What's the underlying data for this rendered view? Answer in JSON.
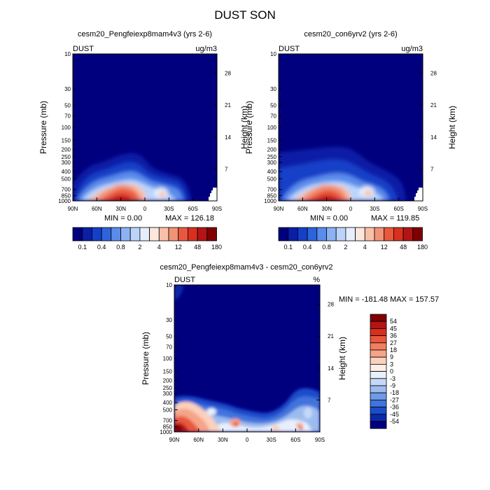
{
  "page_title": "DUST SON",
  "chart_data": [
    {
      "type": "heatmap",
      "title": "cesm20_Pengfeiexp8mam4v3 (yrs 2-6)",
      "variable": "DUST",
      "units": "ug/m3",
      "ylabel": "Pressure (mb)",
      "y2label": "Height (km)",
      "x_ticks": [
        "90N",
        "60N",
        "30N",
        "0",
        "30S",
        "60S",
        "90S"
      ],
      "y_ticks": [
        "10",
        "30",
        "50",
        "70",
        "100",
        "150",
        "200",
        "250",
        "300",
        "400",
        "500",
        "700",
        "850",
        "1000"
      ],
      "y2_ticks": [
        "28",
        "21",
        "14",
        "7"
      ],
      "min_label": "MIN =    0.00",
      "max_label": "MAX = 126.18",
      "min": 0.0,
      "max": 126.18,
      "colorbar_labels": [
        "0.1",
        "0.4",
        "0.8",
        "2",
        "4",
        "12",
        "48",
        "180"
      ]
    },
    {
      "type": "heatmap",
      "title": "cesm20_con6yrv2 (yrs 2-6)",
      "variable": "DUST",
      "units": "ug/m3",
      "ylabel": "Pressure (mb)",
      "y2label": "Height (km)",
      "x_ticks": [
        "90N",
        "60N",
        "30N",
        "0",
        "30S",
        "60S",
        "90S"
      ],
      "y_ticks": [
        "10",
        "30",
        "50",
        "70",
        "100",
        "150",
        "200",
        "250",
        "300",
        "400",
        "500",
        "700",
        "850",
        "1000"
      ],
      "y2_ticks": [
        "28",
        "21",
        "14",
        "7"
      ],
      "min_label": "MIN =    0.00",
      "max_label": "MAX = 119.85",
      "min": 0.0,
      "max": 119.85,
      "colorbar_labels": [
        "0.1",
        "0.4",
        "0.8",
        "2",
        "4",
        "12",
        "48",
        "180"
      ]
    },
    {
      "type": "heatmap",
      "title": "cesm20_Pengfeiexp8mam4v3 - cesm20_con6yrv2",
      "variable": "DUST",
      "units": "%",
      "ylabel": "Pressure (mb)",
      "y2label": "Height (km)",
      "x_ticks": [
        "90N",
        "60N",
        "30N",
        "0",
        "30S",
        "60S",
        "90S"
      ],
      "y_ticks": [
        "10",
        "30",
        "50",
        "70",
        "100",
        "150",
        "200",
        "250",
        "300",
        "400",
        "500",
        "700",
        "850",
        "1000"
      ],
      "y2_ticks": [
        "28",
        "21",
        "14",
        "7"
      ],
      "minmax_label": "MIN = -181.48  MAX = 157.57",
      "min": -181.48,
      "max": 157.57,
      "colorbar_labels": [
        "54",
        "45",
        "36",
        "27",
        "18",
        "9",
        "3",
        "0",
        "-3",
        "-9",
        "-18",
        "-27",
        "-36",
        "-45",
        "-54"
      ]
    }
  ],
  "colors": {
    "abs_scale": [
      "#00007f",
      "#0a1ea6",
      "#1440c8",
      "#2d64dc",
      "#5a8cec",
      "#8cb2f4",
      "#bcd4fa",
      "#e6eefc",
      "#fde6dc",
      "#f9c0a8",
      "#f29276",
      "#e8583e",
      "#d7301f",
      "#b41414",
      "#7f0000"
    ],
    "diff_scale": [
      "#7f0000",
      "#b41414",
      "#d7301f",
      "#e8583e",
      "#f27e5e",
      "#f6a488",
      "#fbd0bc",
      "#fdeee6",
      "#e8f0fc",
      "#c6d8f6",
      "#9cbcf0",
      "#6e9ae6",
      "#4273dc",
      "#1a4ccc",
      "#0a28a8",
      "#00007f"
    ]
  }
}
